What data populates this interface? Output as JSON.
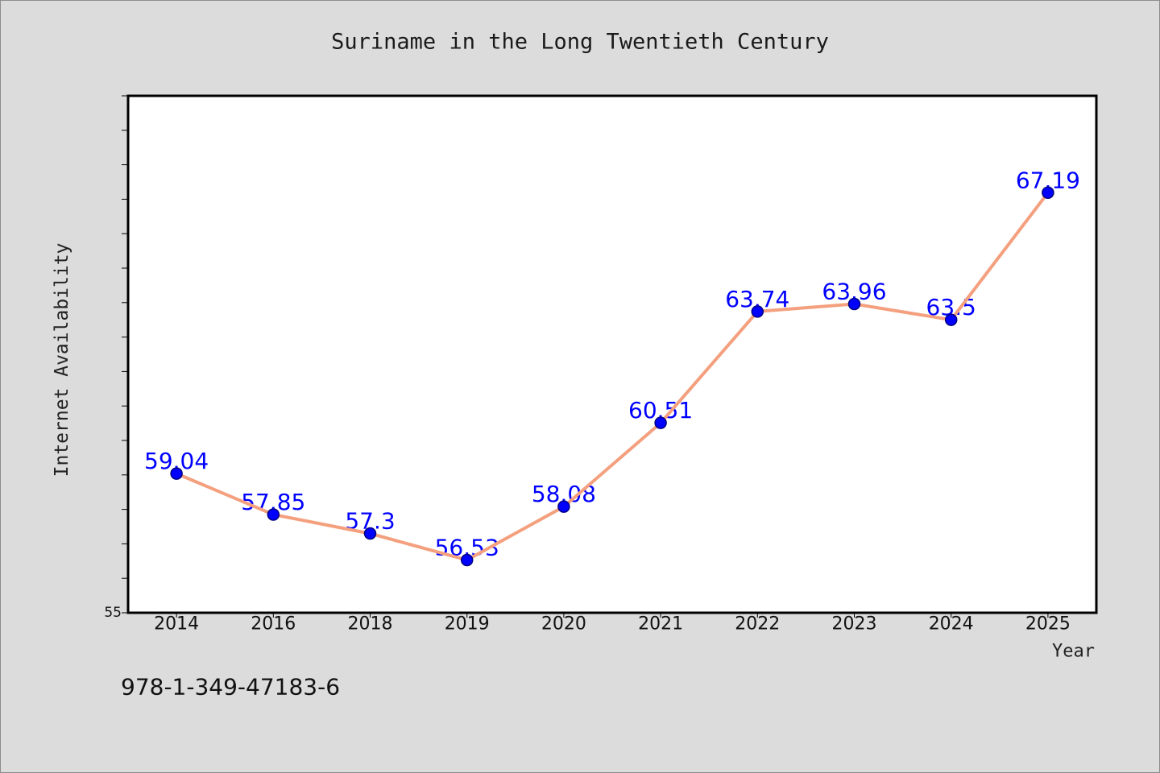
{
  "chart_data": {
    "type": "line",
    "title": "Suriname in the Long Twentieth Century",
    "xlabel": "Year",
    "ylabel": "Internet Availability",
    "categories": [
      "2014",
      "2016",
      "2018",
      "2019",
      "2020",
      "2021",
      "2022",
      "2023",
      "2024",
      "2025"
    ],
    "series": [
      {
        "values": [
          59.04,
          57.85,
          57.3,
          56.53,
          58.08,
          60.51,
          63.74,
          63.96,
          63.5,
          67.19
        ]
      }
    ],
    "ylim": [
      55,
      70
    ],
    "yticks": [
      55,
      56,
      57,
      58,
      59,
      60,
      61,
      62,
      63,
      64,
      65,
      66,
      67,
      68,
      69,
      70
    ],
    "ytick_labels": [
      {
        "value": 55,
        "label": "55"
      }
    ],
    "grid": false,
    "legend": "none",
    "colors": {
      "background": "#dcdcdc",
      "plot_background": "#ffffff",
      "line": "#f4a07e",
      "marker": "#0000ff",
      "marker_edge": "#000080",
      "data_label": "#0000ff"
    }
  },
  "footer": {
    "text": "978-1-349-47183-6"
  }
}
